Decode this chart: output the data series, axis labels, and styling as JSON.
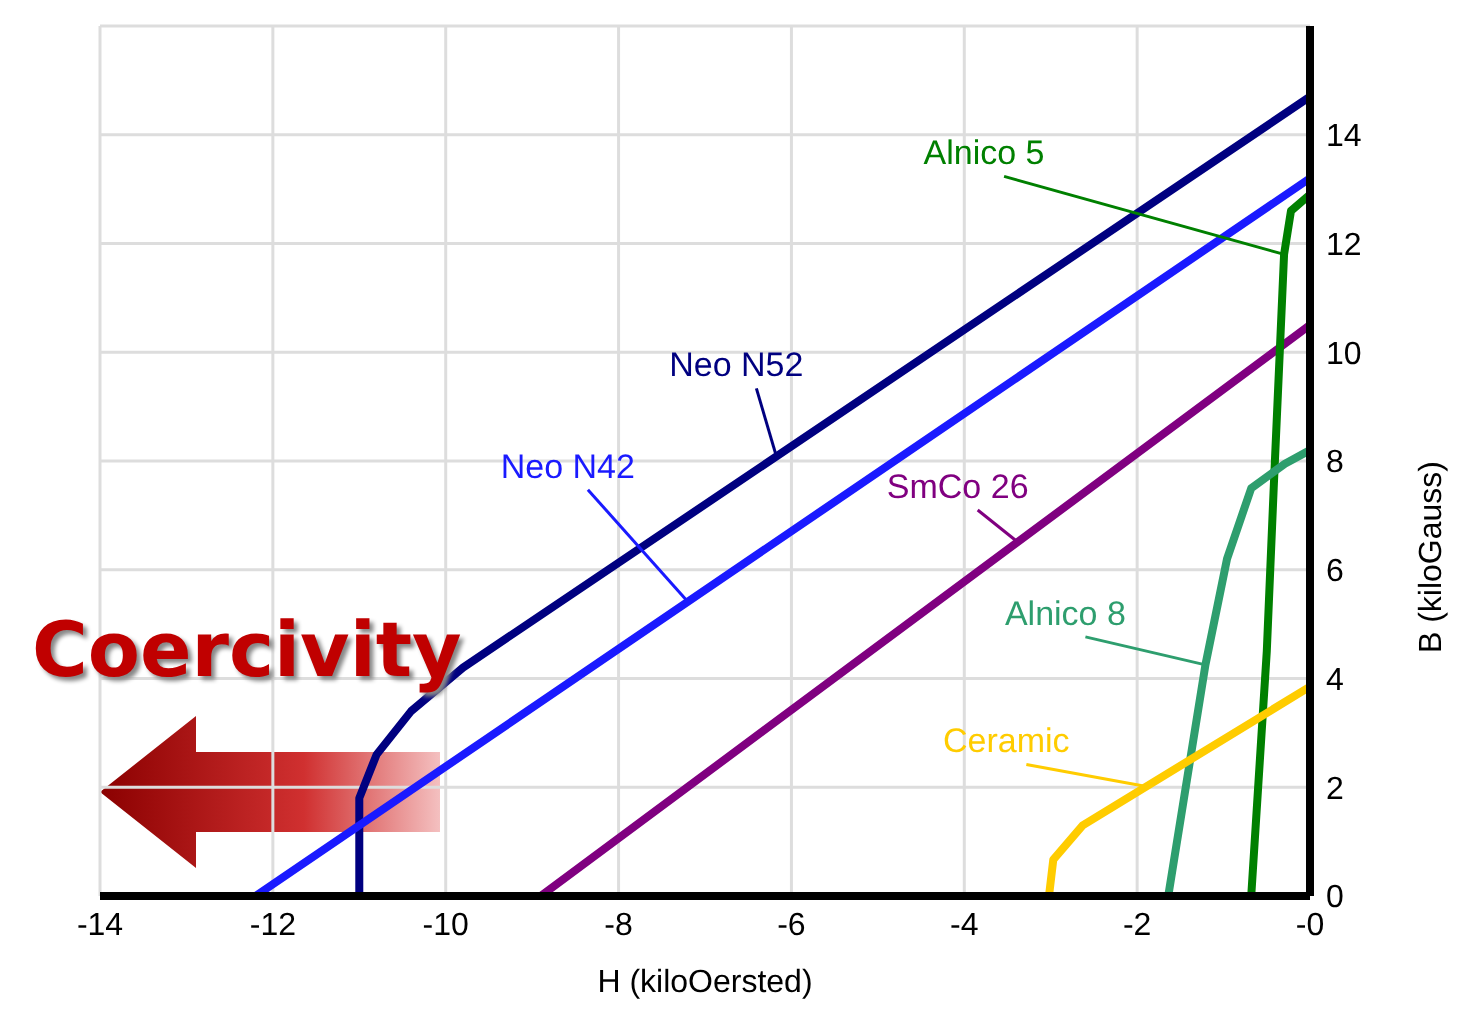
{
  "chart_data": {
    "type": "line",
    "xlabel": "H (kiloOersted)",
    "ylabel": "B (kiloGauss)",
    "xlim": [
      -14,
      0
    ],
    "xticks": [
      -14,
      -12,
      -10,
      -8,
      -6,
      -4,
      -2,
      {
        "value": 0,
        "label": "-0"
      }
    ],
    "ylim": [
      0,
      16
    ],
    "yticks": [
      0,
      2,
      4,
      6,
      8,
      10,
      12,
      14
    ],
    "grid": true,
    "marker": "none",
    "line_style": "solid",
    "annotations": [
      "Coercivity"
    ],
    "series": [
      {
        "name": "Neo N52",
        "color": "#000080",
        "x": [
          -11,
          -11,
          -10.8,
          -10.4,
          -9.8,
          0
        ],
        "values": [
          0,
          1.8,
          2.6,
          3.4,
          4.2,
          14.7
        ]
      },
      {
        "name": "Neo N42",
        "color": "#1a1aff",
        "x": [
          -12.2,
          0
        ],
        "values": [
          0,
          13.2
        ]
      },
      {
        "name": "SmCo 26",
        "color": "#800080",
        "x": [
          -8.9,
          0
        ],
        "values": [
          0,
          10.5
        ]
      },
      {
        "name": "Alnico 5",
        "color": "#008000",
        "x": [
          -0.68,
          -0.6,
          -0.5,
          -0.42,
          -0.35,
          -0.3,
          -0.22,
          0
        ],
        "values": [
          0,
          2,
          4.5,
          7.5,
          10,
          11.8,
          12.6,
          12.9
        ]
      },
      {
        "name": "Alnico 8",
        "color": "#2e9e6e",
        "x": [
          -1.64,
          -1.21,
          -0.96,
          -0.68,
          -0.29,
          0
        ],
        "values": [
          0,
          4.25,
          6.2,
          7.5,
          7.95,
          8.2
        ]
      },
      {
        "name": "Ceramic",
        "color": "#ffcc00",
        "x": [
          -3.02,
          -2.97,
          -2.63,
          0
        ],
        "values": [
          0,
          0.67,
          1.3,
          3.85
        ]
      }
    ]
  }
}
